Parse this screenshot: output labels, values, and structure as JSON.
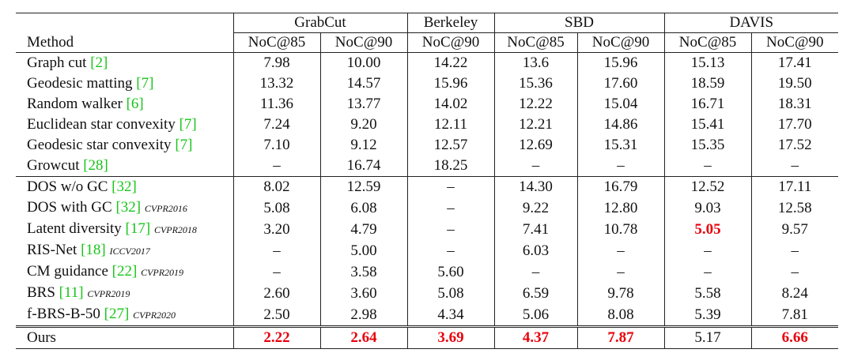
{
  "table": {
    "method_header": "Method",
    "groups": [
      {
        "name": "GrabCut",
        "columns": [
          "NoC@85",
          "NoC@90"
        ]
      },
      {
        "name": "Berkeley",
        "columns": [
          "NoC@90"
        ]
      },
      {
        "name": "SBD",
        "columns": [
          "NoC@85",
          "NoC@90"
        ]
      },
      {
        "name": "DAVIS",
        "columns": [
          "NoC@85",
          "NoC@90"
        ]
      }
    ],
    "highlight_color": "#e8000b",
    "cite_color": "#19c419",
    "sections": [
      [
        {
          "method": "Graph cut",
          "cite": "[2]",
          "cells": [
            "7.98",
            "10.00",
            "14.22",
            "13.6",
            "15.96",
            "15.13",
            "17.41"
          ]
        },
        {
          "method": "Geodesic matting",
          "cite": "[7]",
          "cells": [
            "13.32",
            "14.57",
            "15.96",
            "15.36",
            "17.60",
            "18.59",
            "19.50"
          ]
        },
        {
          "method": "Random walker",
          "cite": "[6]",
          "cells": [
            "11.36",
            "13.77",
            "14.02",
            "12.22",
            "15.04",
            "16.71",
            "18.31"
          ]
        },
        {
          "method": "Euclidean star convexity",
          "cite": "[7]",
          "cells": [
            "7.24",
            "9.20",
            "12.11",
            "12.21",
            "14.86",
            "15.41",
            "17.70"
          ]
        },
        {
          "method": "Geodesic star convexity",
          "cite": "[7]",
          "cells": [
            "7.10",
            "9.12",
            "12.57",
            "12.69",
            "15.31",
            "15.35",
            "17.52"
          ]
        },
        {
          "method": "Growcut",
          "cite": "[28]",
          "cells": [
            "–",
            "16.74",
            "18.25",
            "–",
            "–",
            "–",
            "–"
          ]
        }
      ],
      [
        {
          "method": "DOS w/o GC",
          "cite": "[32]",
          "cells": [
            "8.02",
            "12.59",
            "–",
            "14.30",
            "16.79",
            "12.52",
            "17.11"
          ]
        },
        {
          "method": "DOS with GC",
          "cite": "[32]",
          "venue": "CVPR2016",
          "cells": [
            "5.08",
            "6.08",
            "–",
            "9.22",
            "12.80",
            "9.03",
            "12.58"
          ]
        },
        {
          "method": "Latent diversity",
          "cite": "[17]",
          "venue": "CVPR2018",
          "cells": [
            "3.20",
            "4.79",
            "–",
            "7.41",
            "10.78",
            "5.05",
            "9.57"
          ],
          "highlighted": [
            5
          ]
        },
        {
          "method": "RIS-Net",
          "cite": "[18]",
          "venue": "ICCV2017",
          "cells": [
            "–",
            "5.00",
            "–",
            "6.03",
            "–",
            "–",
            "–"
          ]
        },
        {
          "method": "CM guidance",
          "cite": "[22]",
          "venue": "CVPR2019",
          "cells": [
            "–",
            "3.58",
            "5.60",
            "–",
            "–",
            "–",
            "–"
          ]
        },
        {
          "method": "BRS",
          "cite": "[11]",
          "venue": "CVPR2019",
          "cells": [
            "2.60",
            "3.60",
            "5.08",
            "6.59",
            "9.78",
            "5.58",
            "8.24"
          ]
        },
        {
          "method": "f-BRS-B-50",
          "cite": "[27]",
          "venue": "CVPR2020",
          "cells": [
            "2.50",
            "2.98",
            "4.34",
            "5.06",
            "8.08",
            "5.39",
            "7.81"
          ]
        }
      ],
      [
        {
          "method": "Ours",
          "cells": [
            "2.22",
            "2.64",
            "3.69",
            "4.37",
            "7.87",
            "5.17",
            "6.66"
          ],
          "highlighted": [
            0,
            1,
            2,
            3,
            4,
            6
          ]
        }
      ]
    ]
  }
}
